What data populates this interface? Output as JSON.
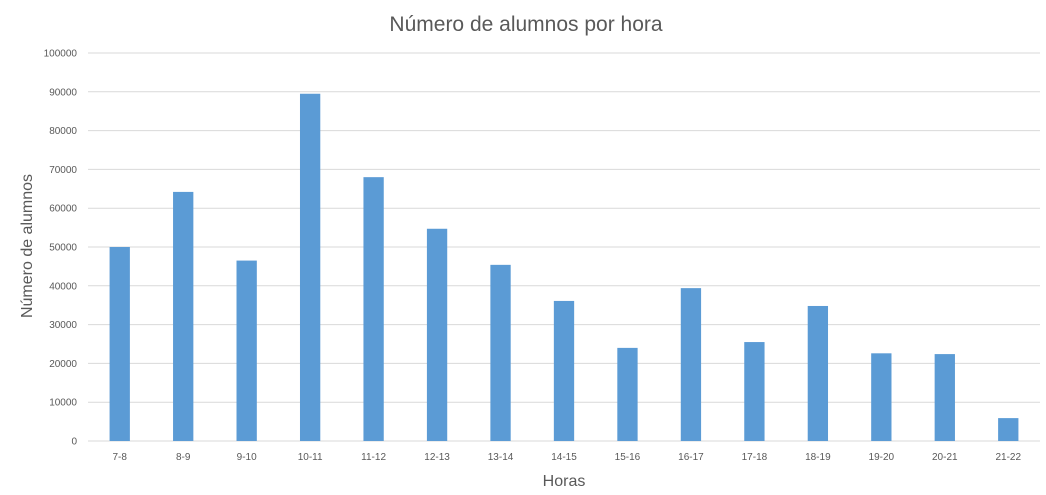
{
  "chart_data": {
    "type": "bar",
    "title": "Número de alumnos por hora",
    "xlabel": "Horas",
    "ylabel": "Número de alumnos",
    "categories": [
      "7-8",
      "8-9",
      "9-10",
      "10-11",
      "11-12",
      "12-13",
      "13-14",
      "14-15",
      "15-16",
      "16-17",
      "17-18",
      "18-19",
      "19-20",
      "20-21",
      "21-22"
    ],
    "values": [
      50000,
      64200,
      46500,
      89500,
      68000,
      54700,
      45400,
      36100,
      24000,
      39400,
      25500,
      34800,
      22600,
      22400,
      5900
    ],
    "ylim": [
      0,
      100000
    ],
    "yticks": [
      "0",
      "10000",
      "20000",
      "30000",
      "40000",
      "50000",
      "60000",
      "70000",
      "80000",
      "90000",
      "100000"
    ],
    "grid": true,
    "legend": "none",
    "bar_color": "#5b9bd5"
  }
}
